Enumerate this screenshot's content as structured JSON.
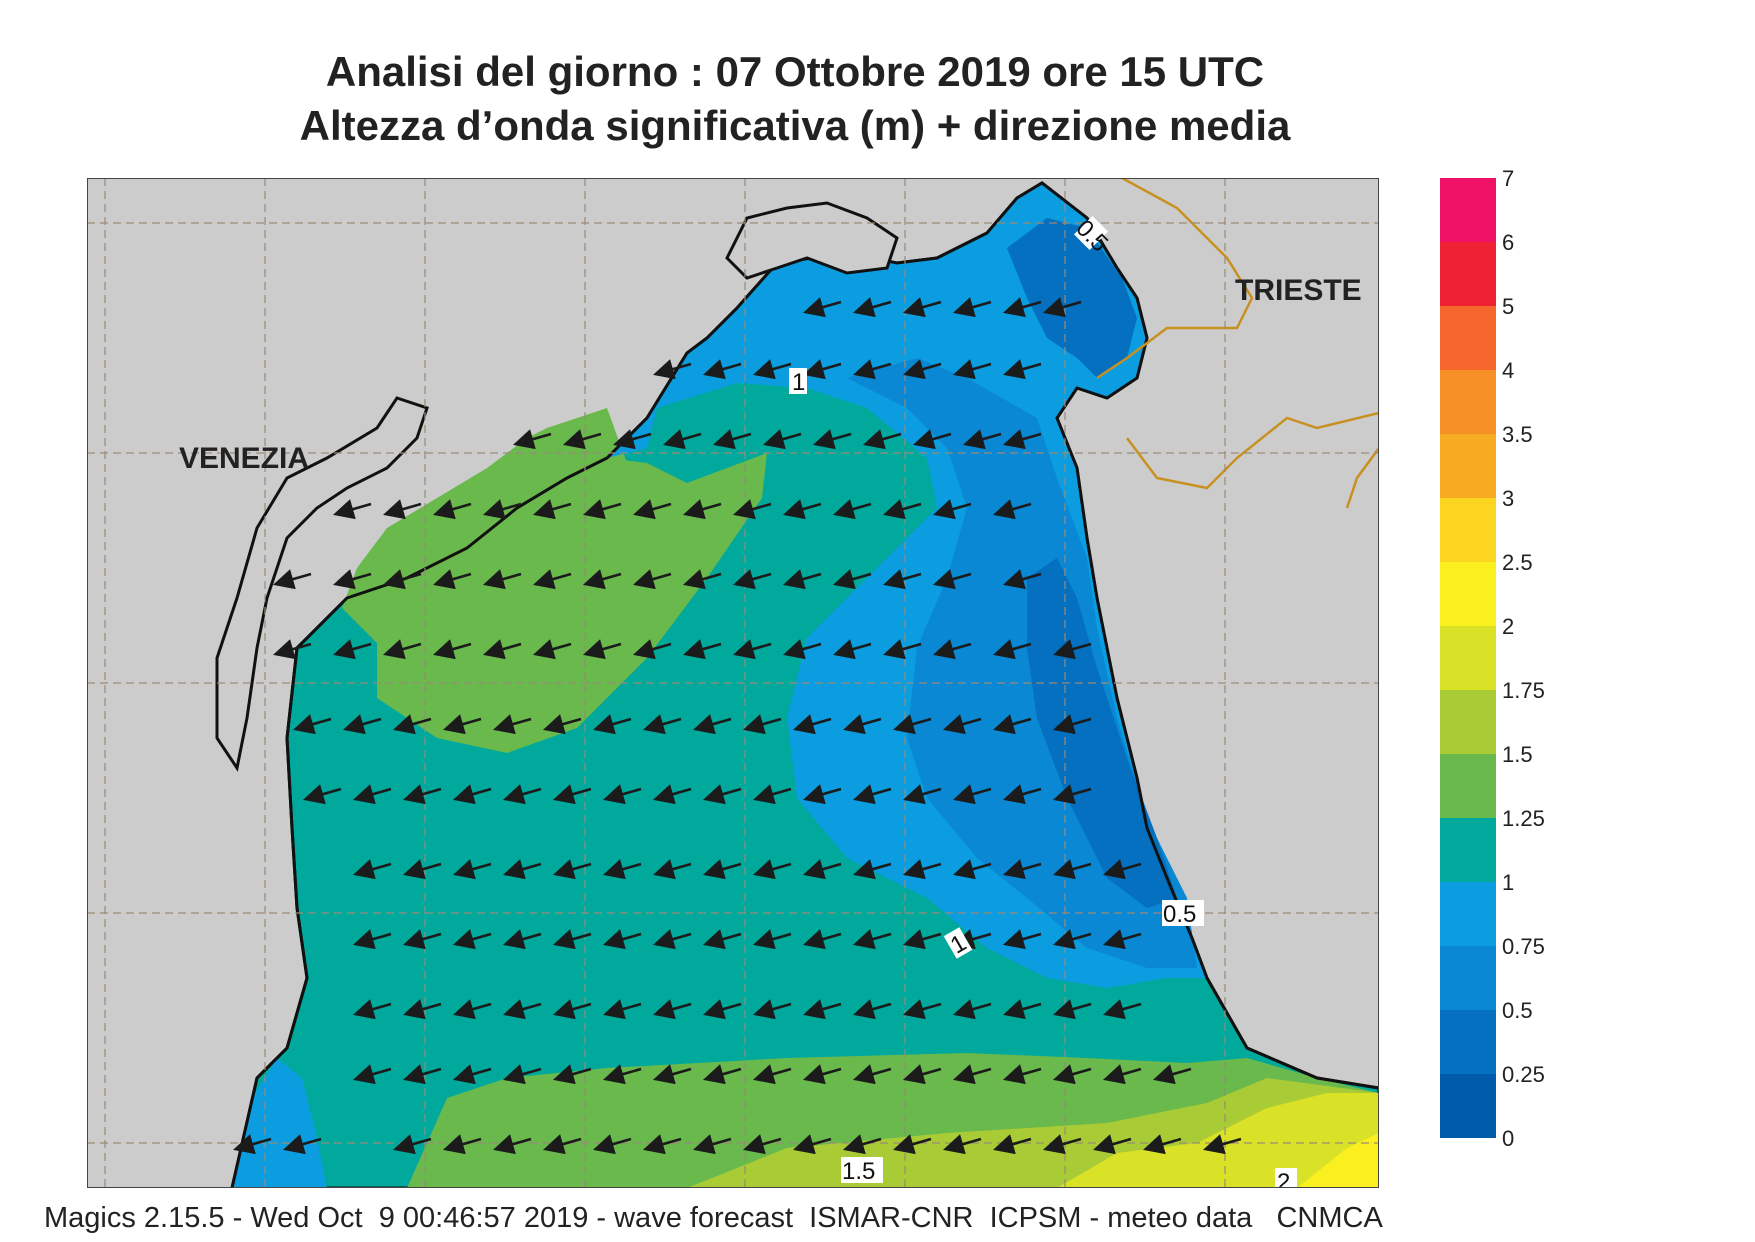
{
  "title": {
    "line1": "Analisi del giorno :  07  Ottobre  2019   ore 15 UTC",
    "line2": "Altezza d’onda significativa (m) + direzione media"
  },
  "footer": "Magics 2.15.5 - Wed Oct  9 00:46:57 2019 - wave forecast  ISMAR-CNR  ICPSM - meteo data   CNMCA",
  "cities": {
    "venezia": "VENEZIA",
    "trieste": "TRIESTE"
  },
  "contour_labels": {
    "c1_top": "1",
    "c05_top": "0.5",
    "c1_mid": "1",
    "c05_right": "0.5",
    "c15_bottom": "1.5",
    "c2_bottom": "2"
  },
  "legend": {
    "labels": [
      "7",
      "6",
      "5",
      "4",
      "3.5",
      "3",
      "2.5",
      "2",
      "1.75",
      "1.5",
      "1.25",
      "1",
      "0.75",
      "0.5",
      "0.25",
      "0"
    ],
    "colors": [
      "#ee1166",
      "#ee2233",
      "#f4662b",
      "#f68f25",
      "#f7ab22",
      "#fbd520",
      "#fbf01f",
      "#d9e227",
      "#a9cc36",
      "#6ab94d",
      "#00a99c",
      "#0b9de0",
      "#0a88d3",
      "#0470bf",
      "#005aaa"
    ]
  },
  "colors": {
    "land": "#cccccc",
    "sea_green": "#6ab94d",
    "sea_teal": "#00a99c",
    "sea_blue": "#0b9de0",
    "sea_blue_dark": "#0470bf",
    "border": "#c8901f",
    "grid": "#9a8a77"
  },
  "arrow_direction": "toward west-southwest"
}
